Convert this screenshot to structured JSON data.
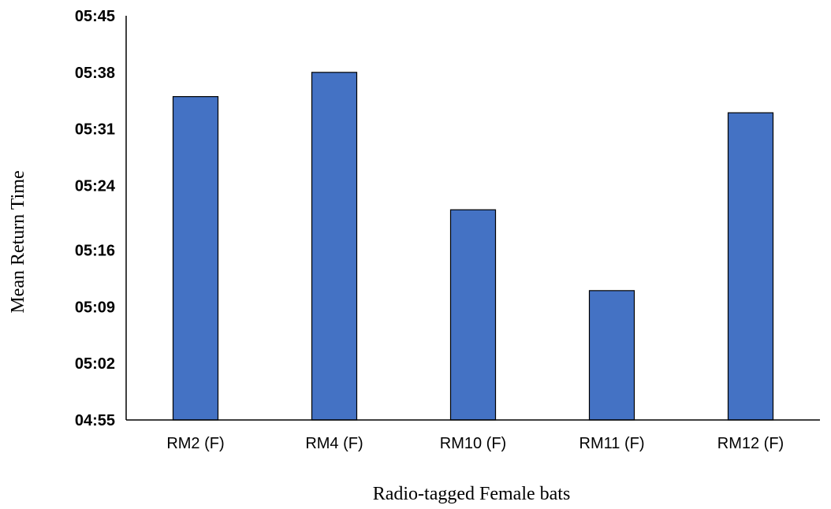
{
  "chart_data": {
    "type": "bar",
    "title": "",
    "xlabel": "Radio-tagged Female bats",
    "ylabel": "Mean Return Time",
    "categories": [
      "RM2 (F)",
      "RM4 (F)",
      "RM10 (F)",
      "RM11 (F)",
      "RM12 (F)"
    ],
    "values": [
      "05:35",
      "05:38",
      "05:21",
      "05:11",
      "05:33"
    ],
    "y_ticks": [
      "04:55",
      "05:02",
      "05:09",
      "05:16",
      "05:24",
      "05:31",
      "05:38",
      "05:45"
    ],
    "ylim": [
      "04:55",
      "05:45"
    ],
    "grid": false,
    "legend": "none",
    "bar_color": "#4472C4",
    "bar_edge_color": "#000000"
  }
}
